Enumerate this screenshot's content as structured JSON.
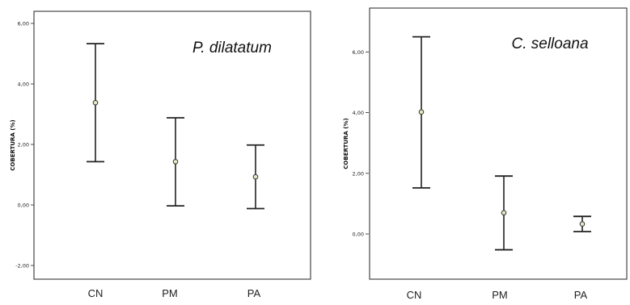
{
  "chart_data": [
    {
      "type": "errorbar",
      "title": "P. dilatatum",
      "ylabel": "COBERTURA (%)",
      "xlabel": "",
      "ylim": [
        -2.3,
        6.3
      ],
      "yticks": [
        -2.0,
        0.0,
        2.0,
        4.0,
        6.0
      ],
      "ytick_labels": [
        "-2,00",
        "0,00",
        "2,00",
        "4,00",
        "6,00"
      ],
      "categories": [
        "CN",
        "PM",
        "PA"
      ],
      "means": [
        3.38,
        1.43,
        0.93
      ],
      "lower": [
        1.43,
        -0.03,
        -0.12
      ],
      "upper": [
        5.33,
        2.88,
        1.98
      ],
      "grid": false
    },
    {
      "type": "errorbar",
      "title": "C. selloana",
      "ylabel": "COBERTURA (%)",
      "xlabel": "",
      "ylim": [
        -1.3,
        7.4
      ],
      "yticks": [
        0.0,
        2.0,
        4.0,
        6.0
      ],
      "ytick_labels": [
        "0,00",
        "2,00",
        "4,00",
        "6,00"
      ],
      "categories": [
        "CN",
        "PM",
        "PA"
      ],
      "means": [
        4.02,
        0.7,
        0.33
      ],
      "lower": [
        1.52,
        -0.52,
        0.08
      ],
      "upper": [
        6.5,
        1.91,
        0.58
      ],
      "grid": false
    }
  ],
  "colors": {
    "frame": "#222222",
    "whisker": "#222222",
    "marker_fill": "#e8e8c0",
    "marker_stroke": "#333333"
  }
}
